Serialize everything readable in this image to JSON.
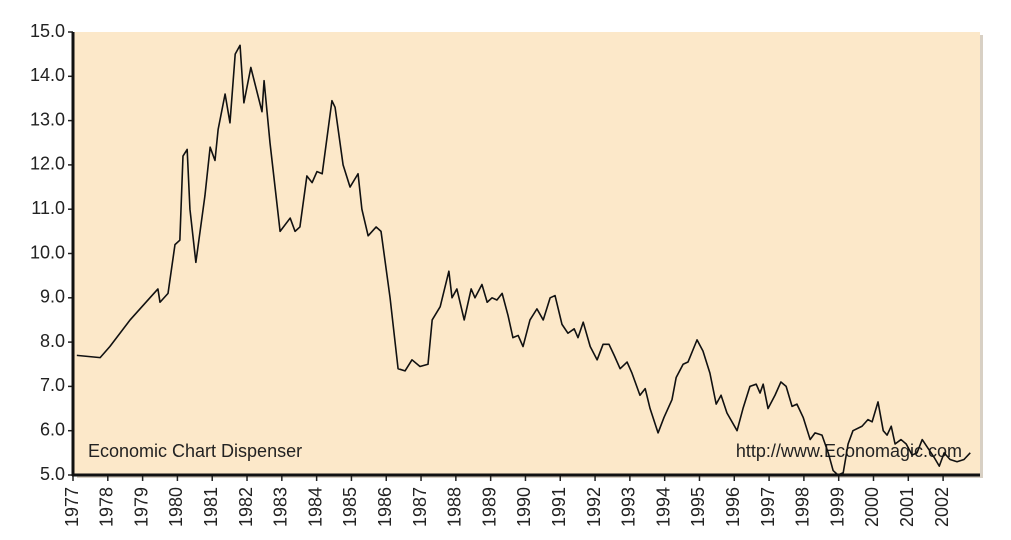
{
  "chart_data": {
    "type": "line",
    "annotations": [
      "Economic Chart Dispenser",
      "http://www.Economagic.com"
    ],
    "x": [
      1977.11,
      1977.78,
      1978.06,
      1978.64,
      1979.21,
      1979.44,
      1979.5,
      1979.73,
      1979.93,
      1980.07,
      1980.16,
      1980.28,
      1980.36,
      1980.53,
      1980.79,
      1980.94,
      1981.08,
      1981.17,
      1981.37,
      1981.51,
      1981.66,
      1981.8,
      1981.91,
      1982.11,
      1982.43,
      1982.49,
      1982.66,
      1982.95,
      1983.24,
      1983.38,
      1983.52,
      1983.72,
      1983.87,
      1984.01,
      1984.16,
      1984.44,
      1984.53,
      1984.76,
      1984.96,
      1985.19,
      1985.3,
      1985.48,
      1985.71,
      1985.85,
      1986.11,
      1986.34,
      1986.54,
      1986.74,
      1986.97,
      1987.2,
      1987.32,
      1987.55,
      1987.8,
      1987.89,
      1988.03,
      1988.24,
      1988.44,
      1988.55,
      1988.75,
      1988.9,
      1989.04,
      1989.18,
      1989.33,
      1989.5,
      1989.64,
      1989.79,
      1989.93,
      1990.13,
      1990.33,
      1990.51,
      1990.71,
      1990.85,
      1991.05,
      1991.22,
      1991.4,
      1991.51,
      1991.66,
      1991.86,
      1992.06,
      1992.23,
      1992.4,
      1992.55,
      1992.72,
      1992.92,
      1993.06,
      1993.29,
      1993.44,
      1993.58,
      1993.81,
      1993.98,
      1994.21,
      1994.33,
      1994.53,
      1994.67,
      1994.93,
      1995.1,
      1995.3,
      1995.48,
      1995.62,
      1995.79,
      1996.08,
      1996.25,
      1996.45,
      1996.63,
      1996.74,
      1996.83,
      1996.97,
      1997.17,
      1997.34,
      1997.49,
      1997.66,
      1997.8,
      1997.98,
      1998.18,
      1998.32,
      1998.52,
      1998.7,
      1998.84,
      1998.98,
      1999.13,
      1999.27,
      1999.41,
      1999.67,
      1999.84,
      1999.96,
      2000.13,
      2000.28,
      2000.39,
      2000.51,
      2000.62,
      2000.79,
      2000.94,
      2001.11,
      2001.25,
      2001.4,
      2001.57,
      2001.74,
      2001.89,
      2002.03,
      2002.2,
      2002.4,
      2002.6,
      2002.78
    ],
    "values": [
      7.7,
      7.65,
      7.9,
      8.5,
      9.0,
      9.2,
      8.9,
      9.1,
      10.2,
      10.3,
      12.2,
      12.35,
      11.0,
      9.8,
      11.3,
      12.4,
      12.1,
      12.8,
      13.6,
      12.95,
      14.5,
      14.7,
      13.4,
      14.2,
      13.2,
      13.9,
      12.5,
      10.5,
      10.8,
      10.5,
      10.6,
      11.75,
      11.6,
      11.85,
      11.8,
      13.45,
      13.3,
      12.0,
      11.5,
      11.8,
      11.0,
      10.4,
      10.6,
      10.5,
      9.0,
      7.4,
      7.35,
      7.6,
      7.45,
      7.5,
      8.5,
      8.8,
      9.6,
      9.0,
      9.2,
      8.5,
      9.2,
      9.0,
      9.3,
      8.9,
      9.0,
      8.95,
      9.1,
      8.6,
      8.1,
      8.15,
      7.9,
      8.5,
      8.75,
      8.5,
      9.0,
      9.05,
      8.4,
      8.2,
      8.3,
      8.1,
      8.45,
      7.9,
      7.6,
      7.95,
      7.95,
      7.7,
      7.4,
      7.55,
      7.3,
      6.8,
      6.95,
      6.5,
      5.95,
      6.3,
      6.7,
      7.2,
      7.5,
      7.55,
      8.05,
      7.8,
      7.3,
      6.6,
      6.8,
      6.4,
      6.0,
      6.5,
      7.0,
      7.05,
      6.85,
      7.05,
      6.5,
      6.8,
      7.1,
      7.0,
      6.55,
      6.6,
      6.3,
      5.8,
      5.95,
      5.9,
      5.5,
      5.1,
      5.0,
      5.05,
      5.7,
      6.0,
      6.1,
      6.25,
      6.2,
      6.65,
      6.0,
      5.9,
      6.1,
      5.7,
      5.8,
      5.7,
      5.45,
      5.5,
      5.8,
      5.6,
      5.4,
      5.2,
      5.5,
      5.35,
      5.3,
      5.35,
      5.5
    ],
    "color": "#111111",
    "xlim": [
      1977,
      2003.06
    ],
    "xticks": [
      1977,
      1978,
      1979,
      1980,
      1981,
      1982,
      1983,
      1984,
      1985,
      1986,
      1987,
      1988,
      1989,
      1990,
      1991,
      1992,
      1993,
      1994,
      1995,
      1996,
      1997,
      1998,
      1999,
      2000,
      2001,
      2002
    ],
    "ylim": [
      5,
      15
    ],
    "yticks": [
      {
        "value": 5,
        "label": "5.0"
      },
      {
        "value": 6,
        "label": "6.0"
      },
      {
        "value": 7,
        "label": "7.0"
      },
      {
        "value": 8,
        "label": "8.0"
      },
      {
        "value": 9,
        "label": "9.0"
      },
      {
        "value": 10,
        "label": "10.0"
      },
      {
        "value": 11,
        "label": "11.0"
      },
      {
        "value": 12,
        "label": "12.0"
      },
      {
        "value": 13,
        "label": "13.0"
      },
      {
        "value": 14,
        "label": "14.0"
      },
      {
        "value": 15,
        "label": "15.0"
      }
    ],
    "grid": false
  }
}
